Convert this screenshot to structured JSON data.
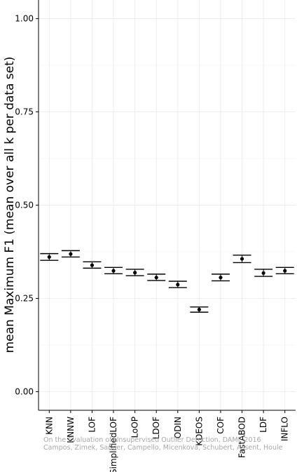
{
  "chart_data": {
    "type": "errorbar",
    "ylabel": "mean Maximum F1 (mean over all k per data set)",
    "ylim": [
      -0.05,
      1.05
    ],
    "yticks": [
      0.0,
      0.25,
      0.5,
      0.75,
      1.0
    ],
    "ytick_labels": [
      "0.00",
      "0.25",
      "0.50",
      "0.75",
      "1.00"
    ],
    "grid": true,
    "categories": [
      "KNN",
      "KNNW",
      "LOF",
      "SimplifiedLOF",
      "LoOP",
      "LDOF",
      "ODIN",
      "KDEOS",
      "COF",
      "FastABOD",
      "LDF",
      "INFLO"
    ],
    "values": [
      0.361,
      0.369,
      0.339,
      0.324,
      0.319,
      0.306,
      0.287,
      0.22,
      0.306,
      0.356,
      0.318,
      0.324
    ],
    "error_upper": [
      0.37,
      0.378,
      0.348,
      0.333,
      0.328,
      0.315,
      0.296,
      0.227,
      0.315,
      0.366,
      0.328,
      0.333
    ],
    "error_lower": [
      0.352,
      0.361,
      0.331,
      0.316,
      0.311,
      0.298,
      0.279,
      0.213,
      0.297,
      0.346,
      0.309,
      0.316
    ]
  },
  "watermark": {
    "line1": "On the Evaluation of Unsupervised Outlier Detection, DAMI, 2016",
    "line2": "Campos, Zimek, Sander, Campello, Micenková, Schubert, Assent, Houle"
  }
}
